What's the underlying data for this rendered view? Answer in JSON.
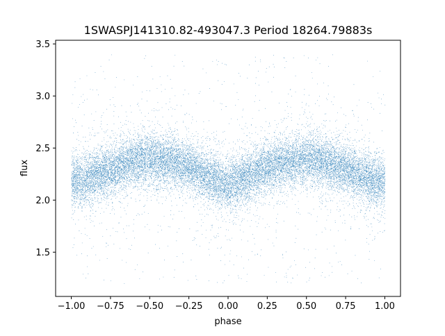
{
  "chart_data": {
    "type": "scatter",
    "title": "1SWASPJ141310.82-493047.3 Period 18264.79883s",
    "xlabel": "phase",
    "ylabel": "flux",
    "xlim": [
      -1.1,
      1.1
    ],
    "ylim": [
      1.075,
      3.535
    ],
    "x_ticks": [
      -1.0,
      -0.75,
      -0.5,
      -0.25,
      0.0,
      0.25,
      0.5,
      0.75,
      1.0
    ],
    "x_tick_labels": [
      "−1.00",
      "−0.75",
      "−0.50",
      "−0.25",
      "0.00",
      "0.25",
      "0.50",
      "0.75",
      "1.00"
    ],
    "y_ticks": [
      1.5,
      2.0,
      2.5,
      3.0,
      3.5
    ],
    "y_tick_labels": [
      "1.5",
      "2.0",
      "2.5",
      "3.0",
      "3.5"
    ],
    "grid": false,
    "legend": "none",
    "series": [
      {
        "point_color": "#1f77b4",
        "phase_range": [
          -1.0,
          1.0
        ],
        "mean_flux_profile": {
          "phase": [
            -1.0,
            -0.9,
            -0.75,
            -0.6,
            -0.5,
            -0.4,
            -0.25,
            -0.1,
            0.0,
            0.1,
            0.25,
            0.4,
            0.5,
            0.6,
            0.75,
            0.9,
            1.0
          ],
          "flux": [
            2.17,
            2.2,
            2.3,
            2.37,
            2.4,
            2.38,
            2.32,
            2.21,
            2.15,
            2.21,
            2.32,
            2.38,
            2.4,
            2.37,
            2.3,
            2.2,
            2.17
          ]
        },
        "flux_spread_sigma": 0.12,
        "outlier_flux_range": [
          1.2,
          3.4
        ],
        "approx_point_count": 20000
      }
    ]
  }
}
